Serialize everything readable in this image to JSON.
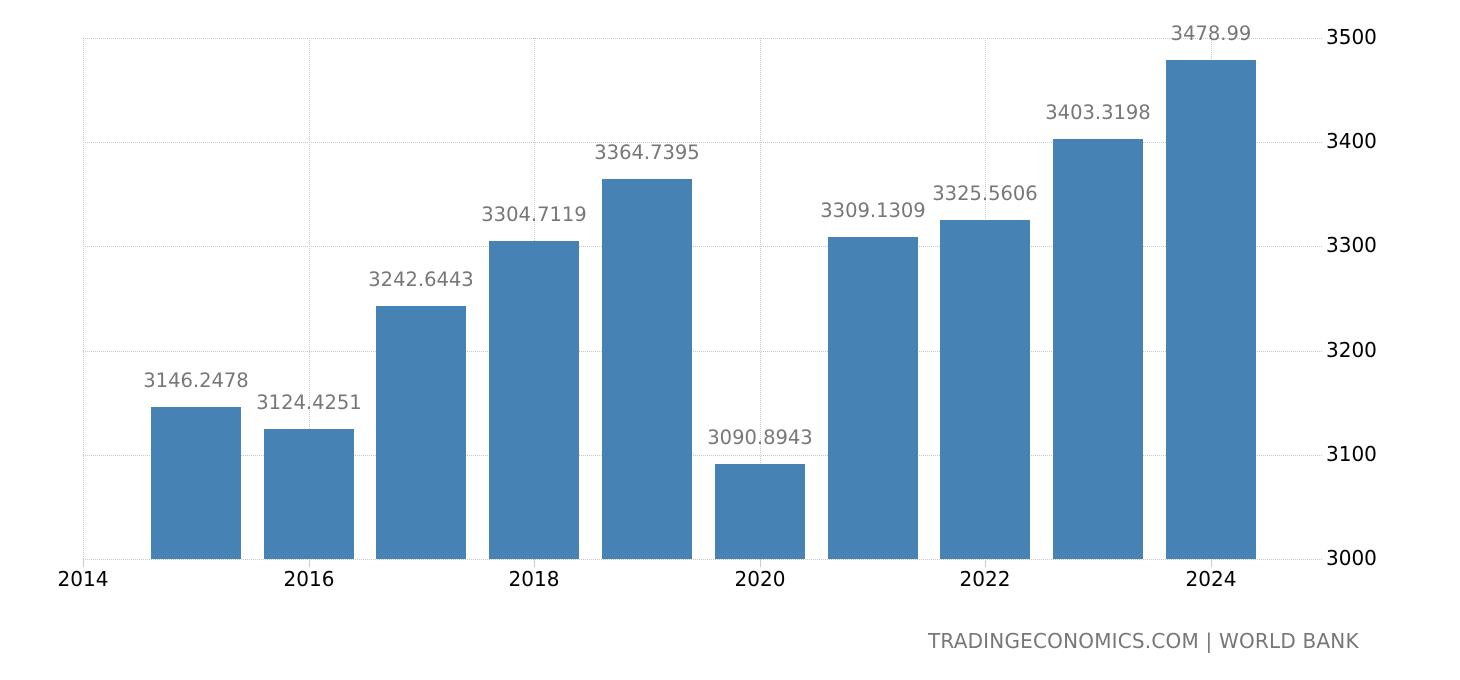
{
  "chart_data": {
    "type": "bar",
    "title": "",
    "xlabel": "",
    "ylabel": "",
    "categories": [
      "2015",
      "2016",
      "2017",
      "2018",
      "2019",
      "2020",
      "2021",
      "2022",
      "2023",
      "2024"
    ],
    "values": [
      3146.2478,
      3124.4251,
      3242.6443,
      3304.7119,
      3364.7395,
      3090.8943,
      3309.1309,
      3325.5606,
      3403.3198,
      3478.99
    ],
    "value_labels": [
      "3146.2478",
      "3124.4251",
      "3242.6443",
      "3304.7119",
      "3364.7395",
      "3090.8943",
      "3309.1309",
      "3325.5606",
      "3403.3198",
      "3478.99"
    ],
    "ylim": [
      3000,
      3500
    ],
    "yticks": [
      "3000",
      "3100",
      "3200",
      "3300",
      "3400",
      "3500"
    ],
    "xticks": [
      "2014",
      "2016",
      "2018",
      "2020",
      "2022",
      "2024"
    ],
    "y_axis_position": "right",
    "grid": true,
    "legend": null,
    "bar_color": "#4682b4"
  },
  "source": "TRADINGECONOMICS.COM | WORLD BANK"
}
